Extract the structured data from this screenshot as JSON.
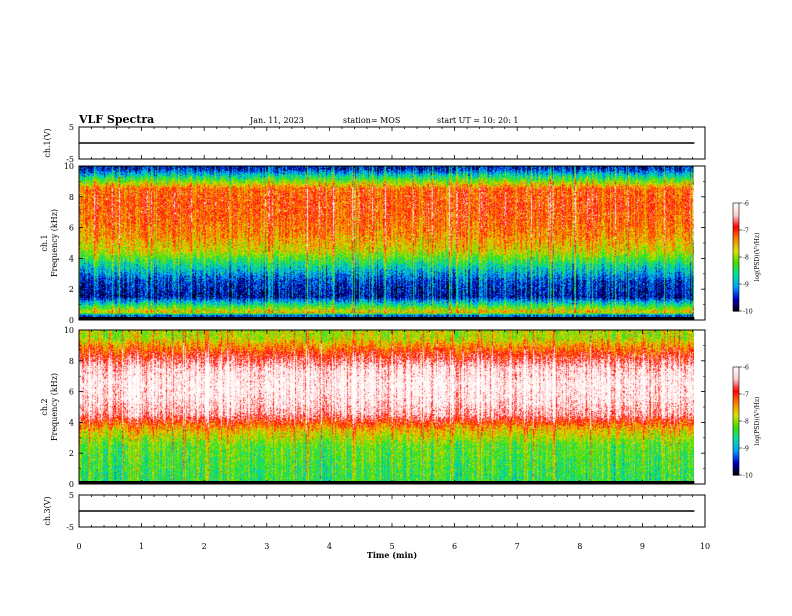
{
  "header": {
    "title": "VLF Spectra",
    "date": "Jan. 11, 2023",
    "station": "station= MOS",
    "start_ut": "start UT =  10: 20: 1"
  },
  "chart_data": [
    {
      "type": "line",
      "panel": "ch1-voltage",
      "ylabel": "ch.1(V)",
      "ylim": [
        -5,
        5
      ],
      "yticks": [
        "5",
        "-5"
      ],
      "series": [
        {
          "x": [
            0,
            9.83
          ],
          "values": [
            0,
            0
          ]
        }
      ]
    },
    {
      "type": "heatmap",
      "panel": "ch1-spectrogram",
      "ylabel_line1": "ch.1",
      "ylabel_line2": "Frequency (kHz)",
      "ylim": [
        0,
        10
      ],
      "yticks": [
        "0",
        "2",
        "4",
        "6",
        "8",
        "10"
      ],
      "colorbar": {
        "label": "log(PSD)(V²/Hz)",
        "range": [
          -10,
          -6
        ],
        "ticks": [
          "-6",
          "-7",
          "-8",
          "-9",
          "-10"
        ]
      },
      "band_profile": [
        {
          "f": 0.3,
          "level": -9.3
        },
        {
          "f": 0.5,
          "level": -7.6
        },
        {
          "f": 1.5,
          "level": -9.6
        },
        {
          "f": 2.5,
          "level": -9.4
        },
        {
          "f": 3.5,
          "level": -8.7
        },
        {
          "f": 4.5,
          "level": -7.8
        },
        {
          "f": 5.5,
          "level": -7.4
        },
        {
          "f": 6.5,
          "level": -7.2
        },
        {
          "f": 7.5,
          "level": -7.1
        },
        {
          "f": 8.5,
          "level": -7.2
        },
        {
          "f": 9.3,
          "level": -8.6
        },
        {
          "f": 9.8,
          "level": -9.5
        }
      ]
    },
    {
      "type": "heatmap",
      "panel": "ch2-spectrogram",
      "ylabel_line1": "ch.2",
      "ylabel_line2": "Frequency (kHz)",
      "ylim": [
        0,
        10
      ],
      "yticks": [
        "0",
        "2",
        "4",
        "6",
        "8",
        "10"
      ],
      "colorbar": {
        "label": "log(PSD)(V²/Hz)",
        "range": [
          -10,
          -6
        ],
        "ticks": [
          "-6",
          "-7",
          "-8",
          "-9",
          "-10"
        ]
      },
      "band_profile": [
        {
          "f": 0.5,
          "level": -8.4
        },
        {
          "f": 1.5,
          "level": -8.3
        },
        {
          "f": 2.5,
          "level": -8.2
        },
        {
          "f": 3.5,
          "level": -7.6
        },
        {
          "f": 4.5,
          "level": -6.5
        },
        {
          "f": 5.5,
          "level": -6.2
        },
        {
          "f": 6.5,
          "level": -6.1
        },
        {
          "f": 7.5,
          "level": -6.3
        },
        {
          "f": 8.5,
          "level": -7.0
        },
        {
          "f": 9.5,
          "level": -7.9
        }
      ]
    },
    {
      "type": "line",
      "panel": "ch3-voltage",
      "ylabel": "ch.3(V)",
      "ylim": [
        -5,
        5
      ],
      "yticks": [
        "5",
        "-5"
      ],
      "series": [
        {
          "x": [
            0,
            9.83
          ],
          "values": [
            0,
            0
          ]
        }
      ]
    }
  ],
  "xaxis": {
    "label": "Time (min)",
    "range": [
      0,
      10
    ],
    "ticks": [
      "0",
      "1",
      "2",
      "3",
      "4",
      "5",
      "6",
      "7",
      "8",
      "9",
      "10"
    ],
    "data_end": 9.83
  },
  "colors": {
    "axis": "#000000",
    "scale": [
      "#000000",
      "#0000c8",
      "#00a0ff",
      "#00e0a0",
      "#40e000",
      "#e0e000",
      "#ff8000",
      "#ff0000",
      "#ffd0d0",
      "#ffffff"
    ]
  }
}
